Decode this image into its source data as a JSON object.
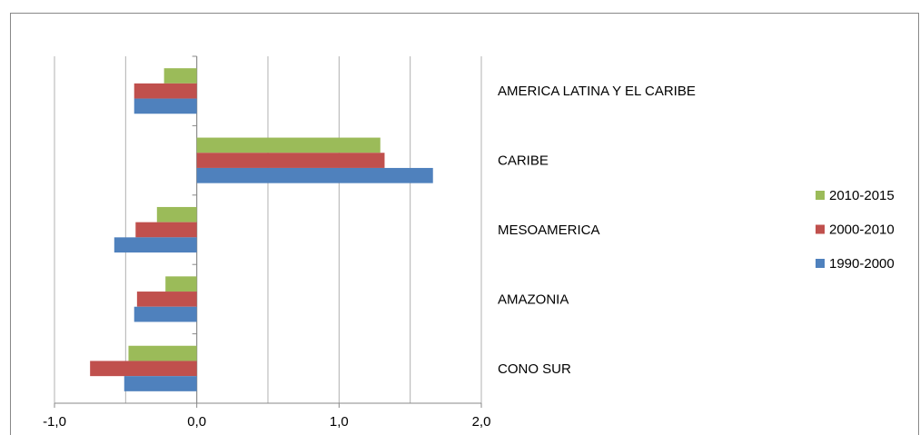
{
  "chart_data": {
    "type": "hbar",
    "categories": [
      "AMERICA LATINA Y EL CARIBE",
      "CARIBE",
      "MESOAMERICA",
      "AMAZONIA",
      "CONO SUR"
    ],
    "series": [
      {
        "name": "2010-2015",
        "color": "#9bbb59",
        "values": [
          -0.23,
          1.29,
          -0.28,
          -0.22,
          -0.48
        ]
      },
      {
        "name": "2000-2010",
        "color": "#c0504d",
        "values": [
          -0.44,
          1.32,
          -0.43,
          -0.42,
          -0.75
        ]
      },
      {
        "name": "1990-2000",
        "color": "#4f81bd",
        "values": [
          -0.44,
          1.66,
          -0.58,
          -0.44,
          -0.51
        ]
      }
    ],
    "xlim": [
      -1,
      2
    ],
    "xticks": [
      {
        "value": -1,
        "label": "-1,0"
      },
      {
        "value": 0,
        "label": "0,0"
      },
      {
        "value": 1,
        "label": "1,0"
      },
      {
        "value": 2,
        "label": "2,0"
      }
    ],
    "xgrid": [
      -1,
      -0.5,
      0,
      0.5,
      1,
      1.5,
      2
    ],
    "grid": true,
    "legend": "right"
  }
}
